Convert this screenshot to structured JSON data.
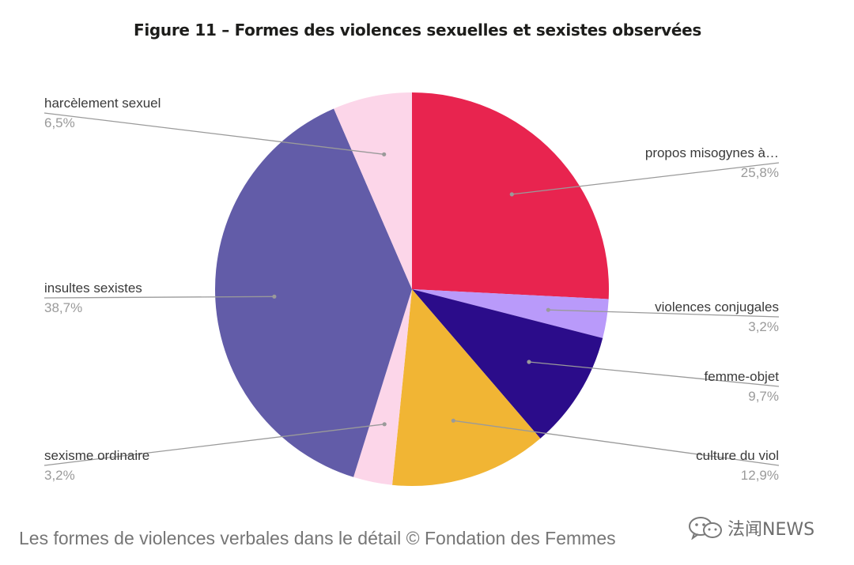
{
  "chart_data": {
    "type": "pie",
    "title": "Figure 11 – Formes des violences sexuelles et sexistes observées",
    "slices": [
      {
        "label": "propos misogynes à…",
        "value_label": "25,8%",
        "value": 25.8,
        "color": "#e8244f"
      },
      {
        "label": "violences conjugales",
        "value_label": "3,2%",
        "value": 3.2,
        "color": "#b99afa"
      },
      {
        "label": "femme-objet",
        "value_label": "9,7%",
        "value": 9.7,
        "color": "#2b0c8a"
      },
      {
        "label": "culture du viol",
        "value_label": "12,9%",
        "value": 12.9,
        "color": "#f1b534"
      },
      {
        "label": "sexisme ordinaire",
        "value_label": "3,2%",
        "value": 3.2,
        "color": "#fcd6e9"
      },
      {
        "label": "insultes sexistes",
        "value_label": "38,7%",
        "value": 38.7,
        "color": "#625ca8"
      },
      {
        "label": "harcèlement sexuel",
        "value_label": "6,5%",
        "value": 6.5,
        "color": "#fcd6e9"
      }
    ],
    "legend": "callout labels"
  },
  "caption": "Les formes de violences verbales dans le détail © Fondation des Femmes",
  "watermark": {
    "icon": "wechat-icon",
    "text": "法闻NEWS"
  }
}
